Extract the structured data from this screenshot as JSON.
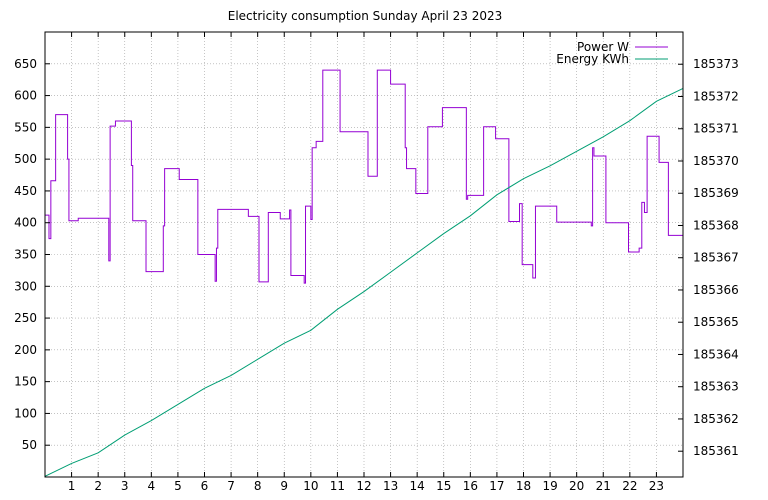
{
  "chart_data": {
    "type": "line",
    "title": "Electricity consumption Sunday April 23 2023",
    "xlabel": "",
    "ylabel": "",
    "y2label": "",
    "xlim": [
      0,
      24
    ],
    "ylim": [
      0,
      700
    ],
    "y2lim": [
      185360.2,
      185374.0
    ],
    "x_ticks": [
      1,
      2,
      3,
      4,
      5,
      6,
      7,
      8,
      9,
      10,
      11,
      12,
      13,
      14,
      15,
      16,
      17,
      18,
      19,
      20,
      21,
      22,
      23
    ],
    "y_ticks": [
      50,
      100,
      150,
      200,
      250,
      300,
      350,
      400,
      450,
      500,
      550,
      600,
      650
    ],
    "y2_ticks": [
      185361,
      185362,
      185363,
      185364,
      185365,
      185366,
      185367,
      185368,
      185369,
      185370,
      185371,
      185372,
      185373
    ],
    "grid": true,
    "legend_position": "top-right",
    "series": [
      {
        "name": "Power W",
        "axis": "y1",
        "color": "#9400d3",
        "style": "steps",
        "points": [
          [
            0.0,
            412
          ],
          [
            0.15,
            375
          ],
          [
            0.22,
            466
          ],
          [
            0.4,
            570
          ],
          [
            0.85,
            500
          ],
          [
            0.9,
            403
          ],
          [
            1.25,
            407
          ],
          [
            2.4,
            340
          ],
          [
            2.45,
            552
          ],
          [
            2.65,
            560
          ],
          [
            3.25,
            490
          ],
          [
            3.3,
            403
          ],
          [
            3.8,
            323
          ],
          [
            4.45,
            395
          ],
          [
            4.5,
            485
          ],
          [
            5.05,
            468
          ],
          [
            5.75,
            350
          ],
          [
            6.4,
            308
          ],
          [
            6.45,
            360
          ],
          [
            6.5,
            421
          ],
          [
            7.65,
            410
          ],
          [
            8.05,
            307
          ],
          [
            8.4,
            416
          ],
          [
            8.85,
            406
          ],
          [
            9.2,
            420
          ],
          [
            9.25,
            317
          ],
          [
            9.75,
            305
          ],
          [
            9.8,
            426
          ],
          [
            10.0,
            405
          ],
          [
            10.05,
            518
          ],
          [
            10.2,
            528
          ],
          [
            10.45,
            640
          ],
          [
            11.1,
            543
          ],
          [
            12.15,
            473
          ],
          [
            12.5,
            640
          ],
          [
            13.0,
            618
          ],
          [
            13.55,
            518
          ],
          [
            13.6,
            485
          ],
          [
            13.95,
            446
          ],
          [
            14.4,
            551
          ],
          [
            14.95,
            581
          ],
          [
            15.85,
            437
          ],
          [
            15.9,
            443
          ],
          [
            16.5,
            551
          ],
          [
            16.95,
            532
          ],
          [
            17.45,
            402
          ],
          [
            17.85,
            430
          ],
          [
            17.95,
            334
          ],
          [
            18.35,
            313
          ],
          [
            18.45,
            426
          ],
          [
            19.25,
            401
          ],
          [
            20.55,
            395
          ],
          [
            20.6,
            518
          ],
          [
            20.65,
            505
          ],
          [
            21.1,
            400
          ],
          [
            21.95,
            354
          ],
          [
            22.35,
            360
          ],
          [
            22.45,
            432
          ],
          [
            22.55,
            416
          ],
          [
            22.65,
            536
          ],
          [
            23.1,
            495
          ],
          [
            23.45,
            380
          ],
          [
            24.0,
            380
          ]
        ]
      },
      {
        "name": "Energy KWh",
        "axis": "y2",
        "color": "#009e73",
        "style": "line",
        "points": [
          [
            0.0,
            185360.22
          ],
          [
            1.0,
            185360.62
          ],
          [
            2.0,
            185360.95
          ],
          [
            3.0,
            185361.5
          ],
          [
            4.0,
            185361.95
          ],
          [
            5.0,
            185362.45
          ],
          [
            6.0,
            185362.95
          ],
          [
            7.0,
            185363.35
          ],
          [
            8.0,
            185363.85
          ],
          [
            9.0,
            185364.35
          ],
          [
            10.0,
            185364.75
          ],
          [
            11.0,
            185365.4
          ],
          [
            12.0,
            185365.95
          ],
          [
            13.0,
            185366.55
          ],
          [
            14.0,
            185367.15
          ],
          [
            15.0,
            185367.75
          ],
          [
            16.0,
            185368.3
          ],
          [
            17.0,
            185368.95
          ],
          [
            18.0,
            185369.45
          ],
          [
            19.0,
            185369.85
          ],
          [
            20.0,
            185370.3
          ],
          [
            21.0,
            185370.75
          ],
          [
            22.0,
            185371.25
          ],
          [
            23.0,
            185371.85
          ],
          [
            24.0,
            185372.25
          ]
        ]
      }
    ]
  }
}
